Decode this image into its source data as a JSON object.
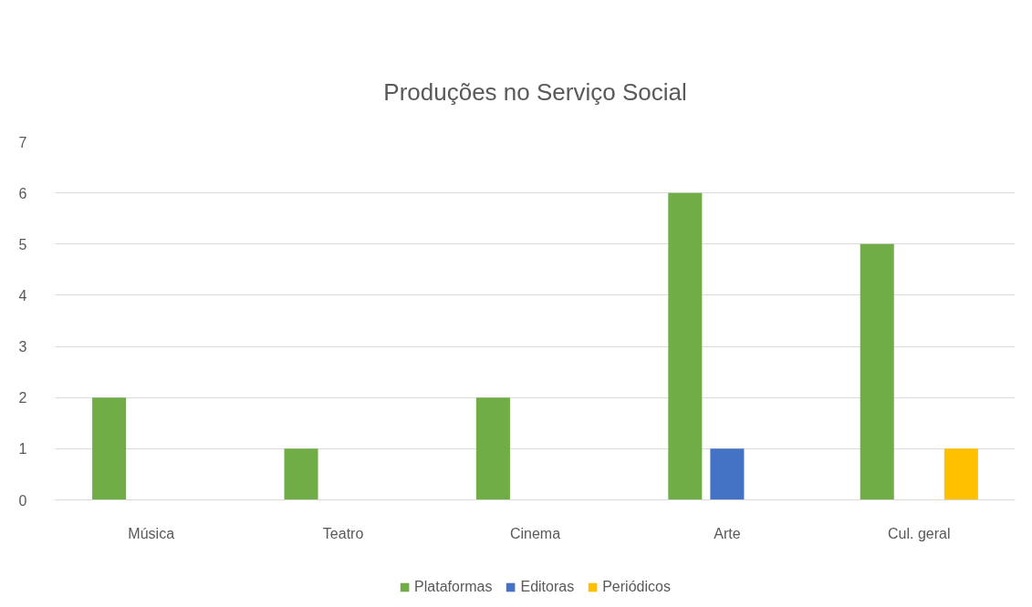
{
  "chart_data": {
    "type": "bar",
    "title": "Produções no Serviço Social",
    "categories": [
      "Música",
      "Teatro",
      "Cinema",
      "Arte",
      "Cul. geral"
    ],
    "series": [
      {
        "name": "Plataformas",
        "color": "#70ad47",
        "values": [
          2,
          1,
          2,
          6,
          5
        ]
      },
      {
        "name": "Editoras",
        "color": "#4472c4",
        "values": [
          null,
          null,
          null,
          1,
          null
        ]
      },
      {
        "name": "Periódicos",
        "color": "#ffc000",
        "values": [
          null,
          null,
          null,
          null,
          1
        ]
      }
    ],
    "ylim": [
      0,
      7
    ],
    "yticks": [
      0,
      1,
      2,
      3,
      4,
      5,
      6,
      7
    ],
    "grid": "y",
    "legend": "bottom"
  }
}
